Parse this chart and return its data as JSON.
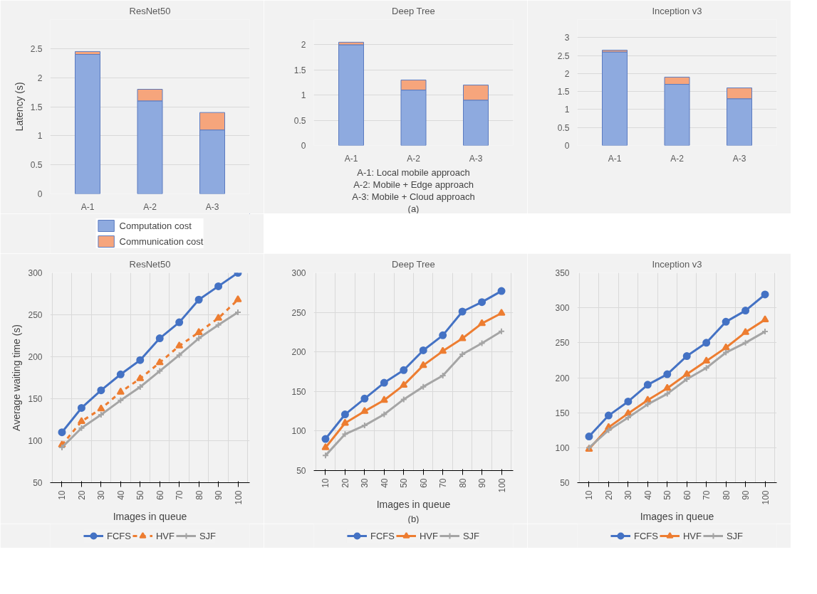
{
  "chart_data": [
    {
      "type": "bar",
      "title": "ResNet50",
      "ylabel": "Latency (s)",
      "categories": [
        "A-1",
        "A-2",
        "A-3"
      ],
      "stacked": true,
      "ylim": [
        0,
        3
      ],
      "yticks": [
        0,
        0.5,
        1,
        1.5,
        2,
        2.5,
        {
          "value": 3,
          "label": null
        }
      ],
      "grid": "y",
      "legend": "bottom",
      "series": [
        {
          "name": "Computation cost",
          "color": "#8eaadf",
          "values": [
            2.4,
            1.6,
            1.1
          ]
        },
        {
          "name": "Communication cost",
          "color": "#f6a57c",
          "values": [
            0.05,
            0.2,
            0.3
          ]
        }
      ]
    },
    {
      "type": "bar",
      "title": "Deep Tree",
      "categories": [
        "A-1",
        "A-2",
        "A-3"
      ],
      "stacked": true,
      "ylim": [
        0,
        2.5
      ],
      "yticks": [
        0,
        0.5,
        1,
        1.5,
        2,
        {
          "value": 2.5,
          "label": null
        }
      ],
      "grid": "y",
      "annotations": [
        "A-1: Local mobile approach",
        "A-2: Mobile + Edge approach",
        "A-3: Mobile + Cloud approach",
        "(a)"
      ],
      "series": [
        {
          "color": "#8eaadf",
          "values": [
            2.0,
            1.1,
            0.9
          ]
        },
        {
          "color": "#f6a57c",
          "values": [
            0.05,
            0.2,
            0.3
          ]
        }
      ]
    },
    {
      "type": "bar",
      "title": "Inception v3",
      "categories": [
        "A-1",
        "A-2",
        "A-3"
      ],
      "stacked": true,
      "ylim": [
        0,
        3.5
      ],
      "yticks": [
        0,
        0.5,
        1,
        1.5,
        2,
        2.5,
        3,
        {
          "value": 3.5,
          "label": null
        }
      ],
      "grid": "y",
      "series": [
        {
          "color": "#8eaadf",
          "values": [
            2.6,
            1.7,
            1.3
          ]
        },
        {
          "color": "#f6a57c",
          "values": [
            0.05,
            0.2,
            0.3
          ]
        }
      ]
    },
    {
      "type": "line",
      "title": "ResNet50",
      "xlabel": "Images in queue",
      "ylabel": "Average waiting time (s)",
      "categories": [
        "10",
        "20",
        "30",
        "40",
        "50",
        "60",
        "70",
        "80",
        "90",
        "100"
      ],
      "ylim": [
        50,
        300
      ],
      "yticks": [
        50,
        100,
        150,
        200,
        250,
        300
      ],
      "grid": true,
      "legend": "bottom",
      "series": [
        {
          "name": "FCFS",
          "color": "#4472c4",
          "marker": "circle",
          "line_style": "solid",
          "values": [
            110,
            139,
            160,
            179,
            196,
            222,
            241,
            268,
            284,
            300
          ]
        },
        {
          "name": "HVF",
          "color": "#ed7d31",
          "marker": "triangle",
          "line_style": "dashed",
          "values": [
            95,
            123,
            138,
            158,
            174,
            193,
            213,
            229,
            246,
            268
          ]
        },
        {
          "name": "SJF",
          "color": "#a5a5a5",
          "marker": "cross",
          "line_style": "solid",
          "values": [
            92,
            115,
            131,
            148,
            164,
            183,
            202,
            222,
            238,
            253
          ]
        }
      ]
    },
    {
      "type": "line",
      "title": "Deep Tree",
      "xlabel": "Images in queue",
      "categories": [
        "10",
        "20",
        "30",
        "40",
        "50",
        "60",
        "70",
        "80",
        "90",
        "100"
      ],
      "ylim": [
        50,
        300
      ],
      "yticks": [
        50,
        100,
        150,
        200,
        250,
        300
      ],
      "grid": true,
      "legend": "bottom",
      "annotations": [
        "(b)"
      ],
      "series": [
        {
          "name": "FCFS",
          "color": "#4472c4",
          "marker": "circle",
          "line_style": "solid",
          "values": [
            90,
            121,
            141,
            161,
            177,
            202,
            221,
            251,
            263,
            277
          ]
        },
        {
          "name": "HVF",
          "color": "#ed7d31",
          "marker": "triangle",
          "line_style": "solid",
          "values": [
            79,
            110,
            125,
            139,
            158,
            183,
            201,
            217,
            236,
            249
          ]
        },
        {
          "name": "SJF",
          "color": "#a5a5a5",
          "marker": "cross",
          "line_style": "solid",
          "values": [
            69,
            96,
            107,
            121,
            140,
            156,
            170,
            197,
            211,
            226
          ]
        }
      ]
    },
    {
      "type": "line",
      "title": "Inception v3",
      "xlabel": "Images in queue",
      "categories": [
        "10",
        "20",
        "30",
        "40",
        "50",
        "60",
        "70",
        "80",
        "90",
        "100"
      ],
      "ylim": [
        50,
        350
      ],
      "yticks": [
        50,
        100,
        150,
        200,
        250,
        300,
        350
      ],
      "grid": true,
      "legend": "bottom",
      "series": [
        {
          "name": "FCFS",
          "color": "#4472c4",
          "marker": "circle",
          "line_style": "solid",
          "values": [
            116,
            146,
            166,
            190,
            205,
            231,
            250,
            280,
            296,
            319
          ]
        },
        {
          "name": "HVF",
          "color": "#ed7d31",
          "marker": "triangle",
          "line_style": "solid",
          "values": [
            98,
            129,
            149,
            168,
            185,
            205,
            224,
            243,
            265,
            283
          ]
        },
        {
          "name": "SJF",
          "color": "#a5a5a5",
          "marker": "cross",
          "line_style": "solid",
          "values": [
            100,
            125,
            143,
            162,
            177,
            198,
            214,
            236,
            250,
            266
          ]
        }
      ]
    }
  ]
}
